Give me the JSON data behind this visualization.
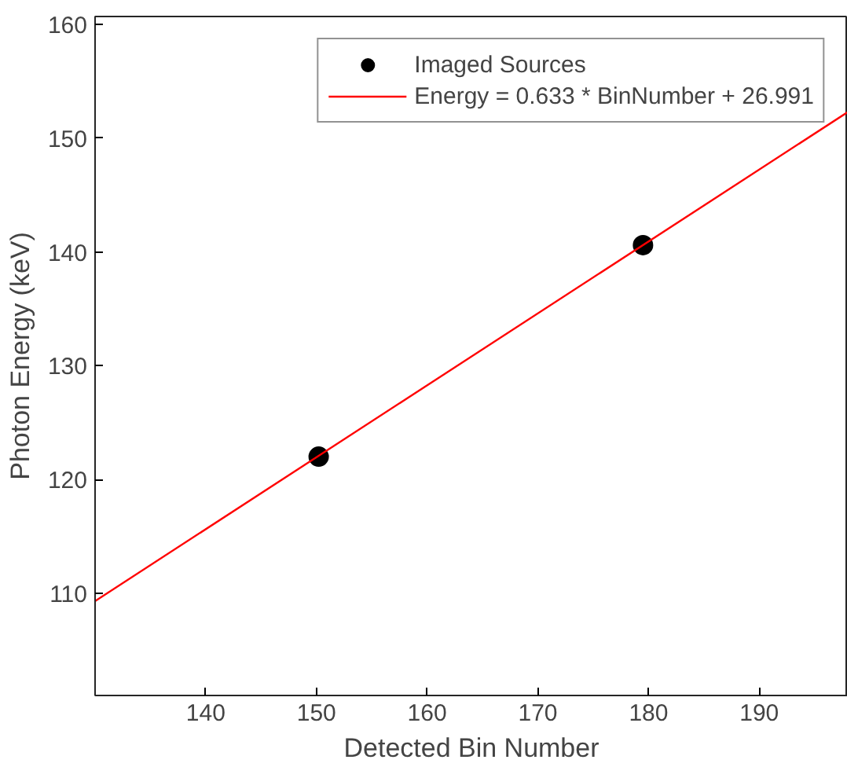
{
  "chart_data": {
    "type": "scatter",
    "xlabel": "Detected Bin Number",
    "ylabel": "Photon Energy (keV)",
    "xlim": [
      130,
      198
    ],
    "ylim": [
      101,
      160.7
    ],
    "xticks": [
      140,
      150,
      160,
      170,
      180,
      190
    ],
    "yticks": [
      110,
      120,
      130,
      140,
      150,
      160
    ],
    "grid": false,
    "legend": "top right",
    "series": [
      {
        "name": "Imaged Sources",
        "marker": "circle",
        "color": "#000000",
        "x": [
          150.2,
          179.5
        ],
        "values": [
          122.0,
          140.6
        ]
      },
      {
        "name": "Energy = 0.633 * BinNumber + 26.991",
        "type": "line",
        "marker": "none",
        "color": "#ff0000",
        "x": [
          130,
          198
        ],
        "values": [
          109.3,
          152.3
        ]
      }
    ]
  }
}
